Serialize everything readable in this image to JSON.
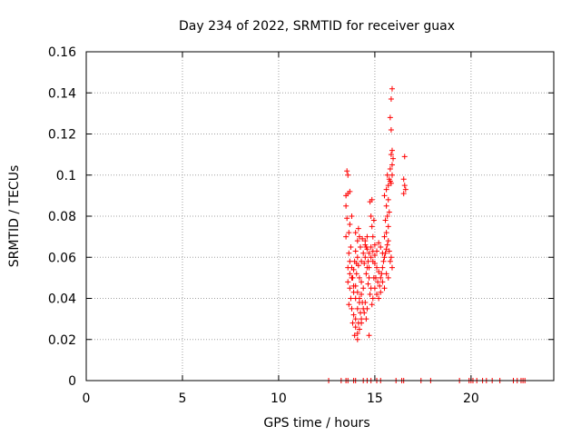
{
  "chart_data": {
    "type": "scatter",
    "title": "Day 234 of 2022, SRMTID for receiver guax",
    "xlabel": "GPS time / hours",
    "ylabel": "SRMTID / TECUs",
    "xlim": [
      0,
      24.3
    ],
    "ylim": [
      0,
      0.16
    ],
    "x_ticks": [
      0,
      5,
      10,
      15,
      20
    ],
    "x_tick_labels": [
      "0",
      "5",
      "10",
      "15",
      "20"
    ],
    "y_ticks": [
      0,
      0.02,
      0.04,
      0.06,
      0.08,
      0.1,
      0.12,
      0.14,
      0.16
    ],
    "y_tick_labels": [
      "0",
      "0.02",
      "0.04",
      "0.06",
      "0.08",
      "0.1",
      "0.12",
      "0.14",
      "0.16"
    ],
    "grid": true,
    "marker": "plus",
    "color": "#ff0000",
    "series": [
      {
        "name": "SRMTID",
        "points": [
          [
            12.6,
            0
          ],
          [
            13.25,
            0
          ],
          [
            13.5,
            0
          ],
          [
            13.6,
            0
          ],
          [
            13.9,
            0
          ],
          [
            14.0,
            0
          ],
          [
            14.4,
            0
          ],
          [
            14.6,
            0
          ],
          [
            14.8,
            0
          ],
          [
            15.1,
            0
          ],
          [
            15.3,
            0
          ],
          [
            16.1,
            0
          ],
          [
            16.4,
            0
          ],
          [
            16.5,
            0
          ],
          [
            17.4,
            0
          ],
          [
            17.9,
            0
          ],
          [
            19.4,
            0
          ],
          [
            19.9,
            0
          ],
          [
            20.0,
            0
          ],
          [
            20.1,
            0
          ],
          [
            20.3,
            0
          ],
          [
            20.6,
            0
          ],
          [
            20.8,
            0
          ],
          [
            21.1,
            0
          ],
          [
            21.5,
            0
          ],
          [
            22.2,
            0
          ],
          [
            22.4,
            0
          ],
          [
            22.6,
            0
          ],
          [
            22.7,
            0
          ],
          [
            22.8,
            0
          ],
          [
            13.55,
            0.102
          ],
          [
            13.6,
            0.1
          ],
          [
            13.5,
            0.09
          ],
          [
            13.6,
            0.091
          ],
          [
            13.7,
            0.092
          ],
          [
            13.5,
            0.085
          ],
          [
            13.55,
            0.079
          ],
          [
            13.8,
            0.08
          ],
          [
            13.65,
            0.072
          ],
          [
            13.5,
            0.07
          ],
          [
            13.7,
            0.076
          ],
          [
            13.75,
            0.065
          ],
          [
            13.65,
            0.062
          ],
          [
            13.7,
            0.058
          ],
          [
            13.6,
            0.055
          ],
          [
            13.7,
            0.052
          ],
          [
            13.8,
            0.05
          ],
          [
            13.6,
            0.048
          ],
          [
            13.7,
            0.045
          ],
          [
            13.9,
            0.043
          ],
          [
            13.75,
            0.04
          ],
          [
            13.65,
            0.037
          ],
          [
            13.8,
            0.035
          ],
          [
            13.9,
            0.032
          ],
          [
            14.0,
            0.03
          ],
          [
            13.85,
            0.028
          ],
          [
            14.0,
            0.026
          ],
          [
            14.1,
            0.023
          ],
          [
            14.1,
            0.02
          ],
          [
            13.95,
            0.022
          ],
          [
            14.2,
            0.025
          ],
          [
            14.15,
            0.028
          ],
          [
            14.3,
            0.03
          ],
          [
            14.25,
            0.033
          ],
          [
            14.4,
            0.035
          ],
          [
            14.35,
            0.038
          ],
          [
            14.2,
            0.04
          ],
          [
            14.1,
            0.043
          ],
          [
            14.0,
            0.046
          ],
          [
            14.3,
            0.048
          ],
          [
            14.2,
            0.05
          ],
          [
            14.05,
            0.052
          ],
          [
            13.9,
            0.054
          ],
          [
            14.15,
            0.056
          ],
          [
            14.3,
            0.058
          ],
          [
            14.1,
            0.06
          ],
          [
            14.0,
            0.063
          ],
          [
            14.25,
            0.065
          ],
          [
            14.4,
            0.062
          ],
          [
            14.5,
            0.06
          ],
          [
            14.45,
            0.057
          ],
          [
            14.6,
            0.055
          ],
          [
            14.55,
            0.052
          ],
          [
            14.7,
            0.05
          ],
          [
            14.65,
            0.047
          ],
          [
            14.8,
            0.045
          ],
          [
            14.75,
            0.042
          ],
          [
            14.9,
            0.04
          ],
          [
            14.85,
            0.037
          ],
          [
            14.6,
            0.035
          ],
          [
            14.5,
            0.038
          ],
          [
            14.7,
            0.022
          ],
          [
            14.55,
            0.03
          ],
          [
            14.45,
            0.033
          ],
          [
            14.3,
            0.028
          ],
          [
            14.2,
            0.07
          ],
          [
            14.1,
            0.068
          ],
          [
            14.0,
            0.072
          ],
          [
            14.15,
            0.074
          ],
          [
            14.35,
            0.069
          ],
          [
            14.5,
            0.066
          ],
          [
            14.6,
            0.064
          ],
          [
            14.7,
            0.062
          ],
          [
            14.8,
            0.065
          ],
          [
            14.9,
            0.063
          ],
          [
            15.0,
            0.061
          ],
          [
            14.8,
            0.06
          ],
          [
            14.9,
            0.058
          ],
          [
            15.0,
            0.057
          ],
          [
            15.1,
            0.055
          ],
          [
            15.2,
            0.053
          ],
          [
            15.05,
            0.05
          ],
          [
            15.15,
            0.048
          ],
          [
            15.25,
            0.046
          ],
          [
            15.3,
            0.05
          ],
          [
            15.35,
            0.052
          ],
          [
            15.4,
            0.055
          ],
          [
            15.45,
            0.058
          ],
          [
            15.5,
            0.06
          ],
          [
            15.55,
            0.062
          ],
          [
            15.6,
            0.064
          ],
          [
            15.65,
            0.066
          ],
          [
            15.7,
            0.068
          ],
          [
            15.4,
            0.062
          ],
          [
            15.3,
            0.065
          ],
          [
            15.2,
            0.067
          ],
          [
            15.1,
            0.063
          ],
          [
            15.0,
            0.066
          ],
          [
            14.9,
            0.07
          ],
          [
            14.85,
            0.075
          ],
          [
            14.95,
            0.078
          ],
          [
            14.8,
            0.08
          ],
          [
            14.75,
            0.087
          ],
          [
            14.85,
            0.088
          ],
          [
            15.5,
            0.07
          ],
          [
            15.6,
            0.072
          ],
          [
            15.7,
            0.075
          ],
          [
            15.55,
            0.078
          ],
          [
            15.65,
            0.08
          ],
          [
            15.75,
            0.082
          ],
          [
            15.6,
            0.085
          ],
          [
            15.7,
            0.088
          ],
          [
            15.5,
            0.09
          ],
          [
            15.6,
            0.093
          ],
          [
            15.7,
            0.095
          ],
          [
            15.8,
            0.097
          ],
          [
            15.65,
            0.1
          ],
          [
            15.75,
            0.098
          ],
          [
            15.85,
            0.096
          ],
          [
            15.9,
            0.1
          ],
          [
            15.8,
            0.103
          ],
          [
            15.9,
            0.105
          ],
          [
            15.95,
            0.108
          ],
          [
            15.85,
            0.11
          ],
          [
            15.9,
            0.112
          ],
          [
            15.85,
            0.122
          ],
          [
            15.8,
            0.128
          ],
          [
            15.85,
            0.137
          ],
          [
            15.9,
            0.142
          ],
          [
            15.9,
            0.055
          ],
          [
            15.8,
            0.058
          ],
          [
            15.85,
            0.06
          ],
          [
            15.75,
            0.063
          ],
          [
            16.55,
            0.109
          ],
          [
            16.5,
            0.098
          ],
          [
            16.55,
            0.095
          ],
          [
            16.6,
            0.093
          ],
          [
            16.5,
            0.091
          ],
          [
            15.6,
            0.052
          ],
          [
            15.7,
            0.05
          ],
          [
            15.4,
            0.048
          ],
          [
            15.5,
            0.045
          ],
          [
            15.3,
            0.043
          ],
          [
            15.2,
            0.04
          ],
          [
            15.1,
            0.042
          ],
          [
            15.0,
            0.045
          ],
          [
            14.95,
            0.05
          ],
          [
            14.7,
            0.055
          ],
          [
            14.65,
            0.058
          ],
          [
            14.5,
            0.068
          ],
          [
            14.6,
            0.07
          ],
          [
            14.55,
            0.065
          ],
          [
            14.4,
            0.045
          ],
          [
            14.3,
            0.042
          ],
          [
            14.2,
            0.038
          ],
          [
            14.1,
            0.035
          ],
          [
            14.0,
            0.04
          ],
          [
            13.9,
            0.046
          ],
          [
            13.85,
            0.05
          ],
          [
            13.8,
            0.055
          ],
          [
            13.95,
            0.058
          ],
          [
            14.05,
            0.057
          ]
        ]
      }
    ]
  }
}
